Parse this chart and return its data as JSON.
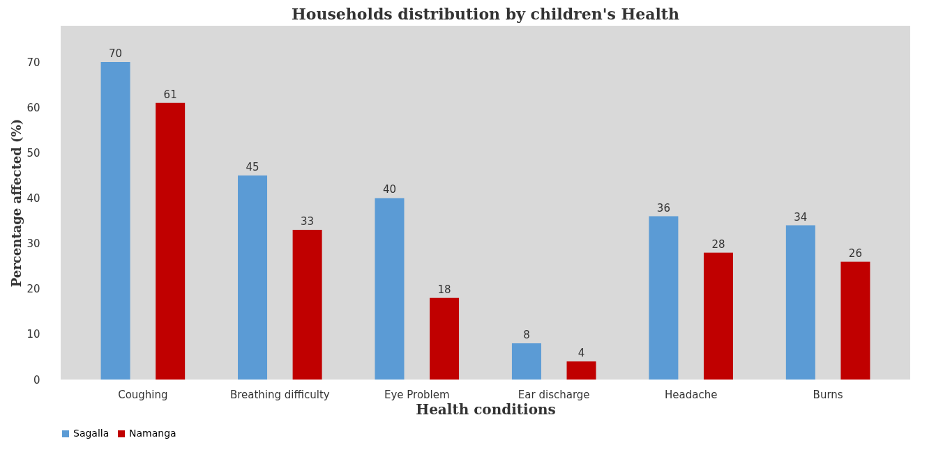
{
  "chart_data": {
    "type": "bar",
    "title": "Households distribution by children's Health",
    "xlabel": "Health conditions",
    "ylabel": "Percentage affected (%)",
    "categories": [
      "Coughing",
      "Breathing difficulty",
      "Eye Problem",
      "Ear discharge",
      "Headache",
      "Burns"
    ],
    "series": [
      {
        "name": "Sagalla",
        "color": "#5b9bd5",
        "values": [
          70,
          45,
          40,
          8,
          36,
          34
        ]
      },
      {
        "name": "Namanga",
        "color": "#c00000",
        "values": [
          61,
          33,
          18,
          4,
          28,
          26
        ]
      }
    ],
    "ylim": [
      0,
      78
    ],
    "yticks": [
      0,
      10,
      20,
      30,
      40,
      50,
      60,
      70
    ],
    "grid": false,
    "legend": "bottom",
    "data_labels": true
  }
}
